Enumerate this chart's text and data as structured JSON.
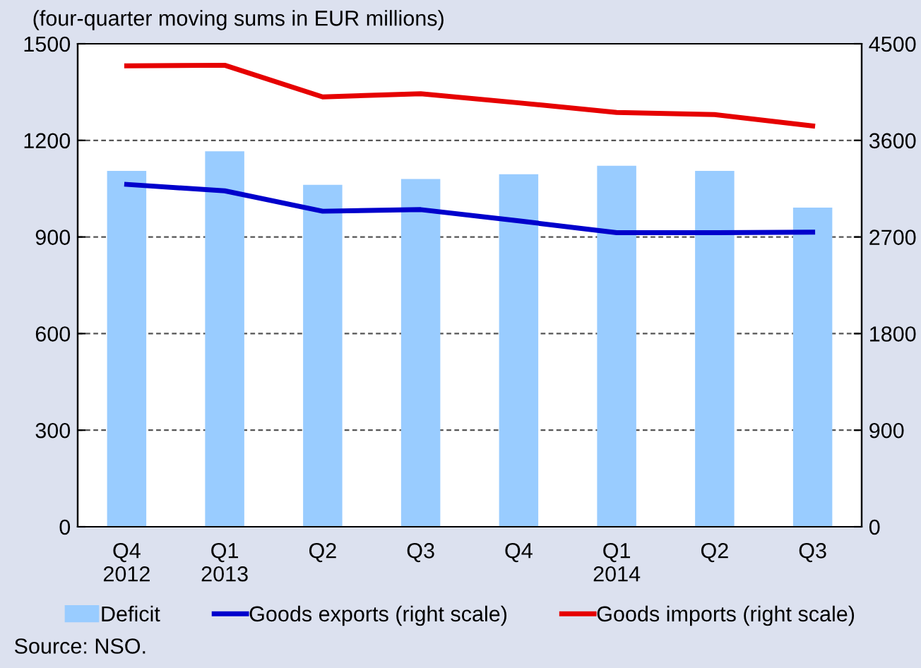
{
  "chart_data": {
    "type": "bar",
    "subtitle": "(four-quarter moving sums in EUR millions)",
    "categories": [
      "Q4\n2012",
      "Q1\n2013",
      "Q2",
      "Q3",
      "Q4",
      "Q1\n2014",
      "Q2",
      "Q3"
    ],
    "series": [
      {
        "name": "Deficit",
        "color": "#99ccff",
        "values": [
          1105,
          1166,
          1062,
          1080,
          1095,
          1121,
          1105,
          991
        ]
      },
      {
        "name": "Goods exports (right scale)",
        "type": "line",
        "axis": "y2",
        "color": "#0000cc",
        "values": [
          3190,
          3130,
          2940,
          2955,
          2850,
          2740,
          2740,
          2745
        ]
      },
      {
        "name": "Goods imports (right scale)",
        "type": "line",
        "axis": "y2",
        "color": "#e60000",
        "values": [
          4295,
          4300,
          4005,
          4035,
          3950,
          3860,
          3840,
          3735
        ]
      }
    ],
    "ylim": [
      0,
      1500
    ],
    "yticks": [
      0,
      300,
      600,
      900,
      1200,
      1500
    ],
    "y2lim": [
      0,
      4500
    ],
    "y2ticks": [
      0,
      900,
      1800,
      2700,
      3600,
      4500
    ],
    "grid": "y",
    "legend": "bottom",
    "line_style": "solid",
    "marker": "none",
    "annotations": [
      "Source: NSO."
    ]
  }
}
